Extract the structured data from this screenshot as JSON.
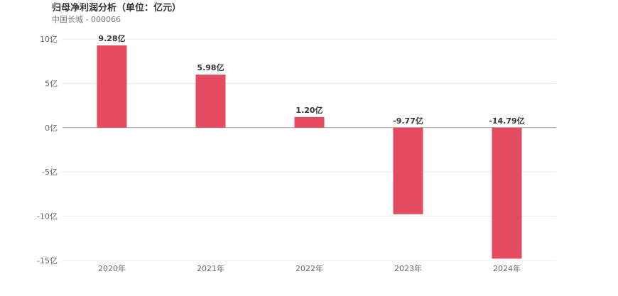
{
  "header": {
    "title": "归母净利润分析（单位：亿元）",
    "subtitle": "中国长城 - 000066"
  },
  "colors": {
    "bar": "#e54b60",
    "zero_line": "#999999",
    "grid": "#e8e8e8"
  },
  "chart_data": {
    "type": "bar",
    "title": "归母净利润分析（单位：亿元）",
    "subtitle": "中国长城 - 000066",
    "xlabel": "",
    "ylabel": "",
    "categories": [
      "2020年",
      "2021年",
      "2022年",
      "2023年",
      "2024年"
    ],
    "values": [
      9.28,
      5.98,
      1.2,
      -9.77,
      -14.79
    ],
    "data_labels": [
      "9.28亿",
      "5.98亿",
      "1.20亿",
      "-9.77亿",
      "-14.79亿"
    ],
    "ylim": [
      -15,
      10
    ],
    "yticks": [
      10,
      5,
      0,
      -5,
      -10,
      -15
    ],
    "ytick_labels": [
      "10亿",
      "5亿",
      "0亿",
      "-5亿",
      "-10亿",
      "-15亿"
    ],
    "grid": true,
    "legend": "none"
  }
}
